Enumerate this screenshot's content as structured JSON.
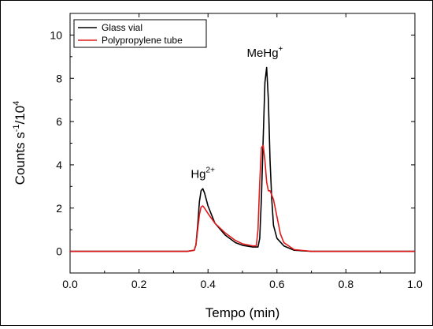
{
  "chart_data": {
    "type": "line",
    "xlabel": "Tempo (min)",
    "ylabel_parts": {
      "base": "Counts s",
      "exp1": "-1",
      "mid": "/10",
      "exp2": "4"
    },
    "xlim": [
      0.0,
      1.0
    ],
    "ylim": [
      -1,
      11
    ],
    "x_ticks": [
      "0.0",
      "0.2",
      "0.4",
      "0.6",
      "0.8",
      "1.0"
    ],
    "x_tick_values": [
      0.0,
      0.2,
      0.4,
      0.6,
      0.8,
      1.0
    ],
    "y_ticks": [
      "0",
      "2",
      "4",
      "6",
      "8",
      "10"
    ],
    "y_tick_values": [
      0,
      2,
      4,
      6,
      8,
      10
    ],
    "legend": {
      "placement": "top-left"
    },
    "annotations": [
      {
        "base": "Hg",
        "sup": "2+",
        "x": 0.385,
        "y": 3.4
      },
      {
        "base": "MeHg",
        "sup": "+",
        "x": 0.565,
        "y": 9.0
      }
    ],
    "series": [
      {
        "name": "Glass vial",
        "color": "#000000",
        "x": [
          0.0,
          0.34,
          0.36,
          0.365,
          0.37,
          0.375,
          0.38,
          0.385,
          0.39,
          0.4,
          0.42,
          0.45,
          0.48,
          0.5,
          0.53,
          0.545,
          0.55,
          0.555,
          0.56,
          0.565,
          0.57,
          0.575,
          0.58,
          0.585,
          0.59,
          0.6,
          0.62,
          0.65,
          0.7,
          0.8,
          1.0
        ],
        "y": [
          0.0,
          0.0,
          0.05,
          0.3,
          1.2,
          2.3,
          2.8,
          2.9,
          2.7,
          2.1,
          1.3,
          0.75,
          0.4,
          0.28,
          0.2,
          0.2,
          0.6,
          2.5,
          5.2,
          7.8,
          8.5,
          7.0,
          4.2,
          2.4,
          1.2,
          0.6,
          0.25,
          0.05,
          0.0,
          0.0,
          0.0
        ]
      },
      {
        "name": "Polypropylene tube",
        "color": "#e11b1b",
        "x": [
          0.0,
          0.34,
          0.36,
          0.365,
          0.37,
          0.375,
          0.38,
          0.385,
          0.39,
          0.4,
          0.42,
          0.45,
          0.48,
          0.5,
          0.53,
          0.54,
          0.545,
          0.55,
          0.555,
          0.56,
          0.565,
          0.57,
          0.575,
          0.58,
          0.59,
          0.6,
          0.61,
          0.62,
          0.65,
          0.7,
          0.8,
          1.0
        ],
        "y": [
          0.0,
          0.0,
          0.05,
          0.3,
          1.0,
          1.7,
          2.05,
          2.1,
          2.0,
          1.75,
          1.3,
          0.85,
          0.5,
          0.35,
          0.25,
          0.25,
          1.0,
          3.2,
          4.8,
          4.9,
          4.2,
          3.2,
          2.8,
          2.8,
          2.4,
          1.6,
          0.8,
          0.4,
          0.08,
          0.0,
          0.0,
          0.0
        ]
      }
    ]
  }
}
